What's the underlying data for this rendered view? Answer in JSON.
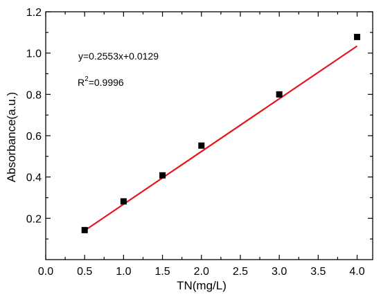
{
  "chart_data": {
    "type": "scatter",
    "xlabel": "TN(mg/L)",
    "ylabel": "Absorbance(a.u.)",
    "xlim": [
      0.0,
      4.2
    ],
    "ylim": [
      0.0,
      1.2
    ],
    "x_ticks": [
      0.0,
      0.5,
      1.0,
      1.5,
      2.0,
      2.5,
      3.0,
      3.5,
      4.0
    ],
    "x_tick_labels": [
      "0.0",
      "0.5",
      "1.0",
      "1.5",
      "2.0",
      "2.5",
      "3.0",
      "3.5",
      "4.0"
    ],
    "y_ticks": [
      0.2,
      0.4,
      0.6,
      0.8,
      1.0,
      1.2
    ],
    "y_tick_labels": [
      "0.2",
      "0.4",
      "0.6",
      "0.8",
      "1.0",
      "1.2"
    ],
    "grid": false,
    "series": [
      {
        "marker": "square",
        "color": "#000000",
        "x": [
          0.5,
          1.0,
          1.5,
          2.0,
          3.0,
          4.0
        ],
        "y": [
          0.143,
          0.282,
          0.408,
          0.552,
          0.8,
          1.078
        ]
      }
    ],
    "fit_line": {
      "slope": 0.2553,
      "intercept": 0.0129,
      "x_range": [
        0.5,
        4.0
      ],
      "color": "#e8141c"
    },
    "annotations": {
      "equation": "y=0.2553x+0.0129",
      "r2_prefix": "R",
      "r2_exp": "2",
      "r2_value": "=0.9996"
    }
  }
}
